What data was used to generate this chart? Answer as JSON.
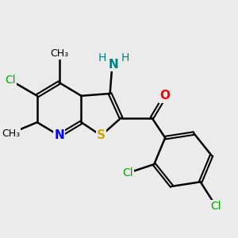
{
  "background_color": "#ebebeb",
  "bond_color": "#000000",
  "atom_colors": {
    "N": "#0000ff",
    "S": "#ccaa00",
    "O": "#ff0000",
    "Cl": "#00aa00",
    "C": "#000000",
    "NH2_N": "#008080",
    "NH2_H": "#008080"
  },
  "figsize": [
    3.0,
    3.0
  ],
  "dpi": 100,
  "xlim": [
    -1.5,
    8.5
  ],
  "ylim": [
    -4.5,
    4.0
  ]
}
